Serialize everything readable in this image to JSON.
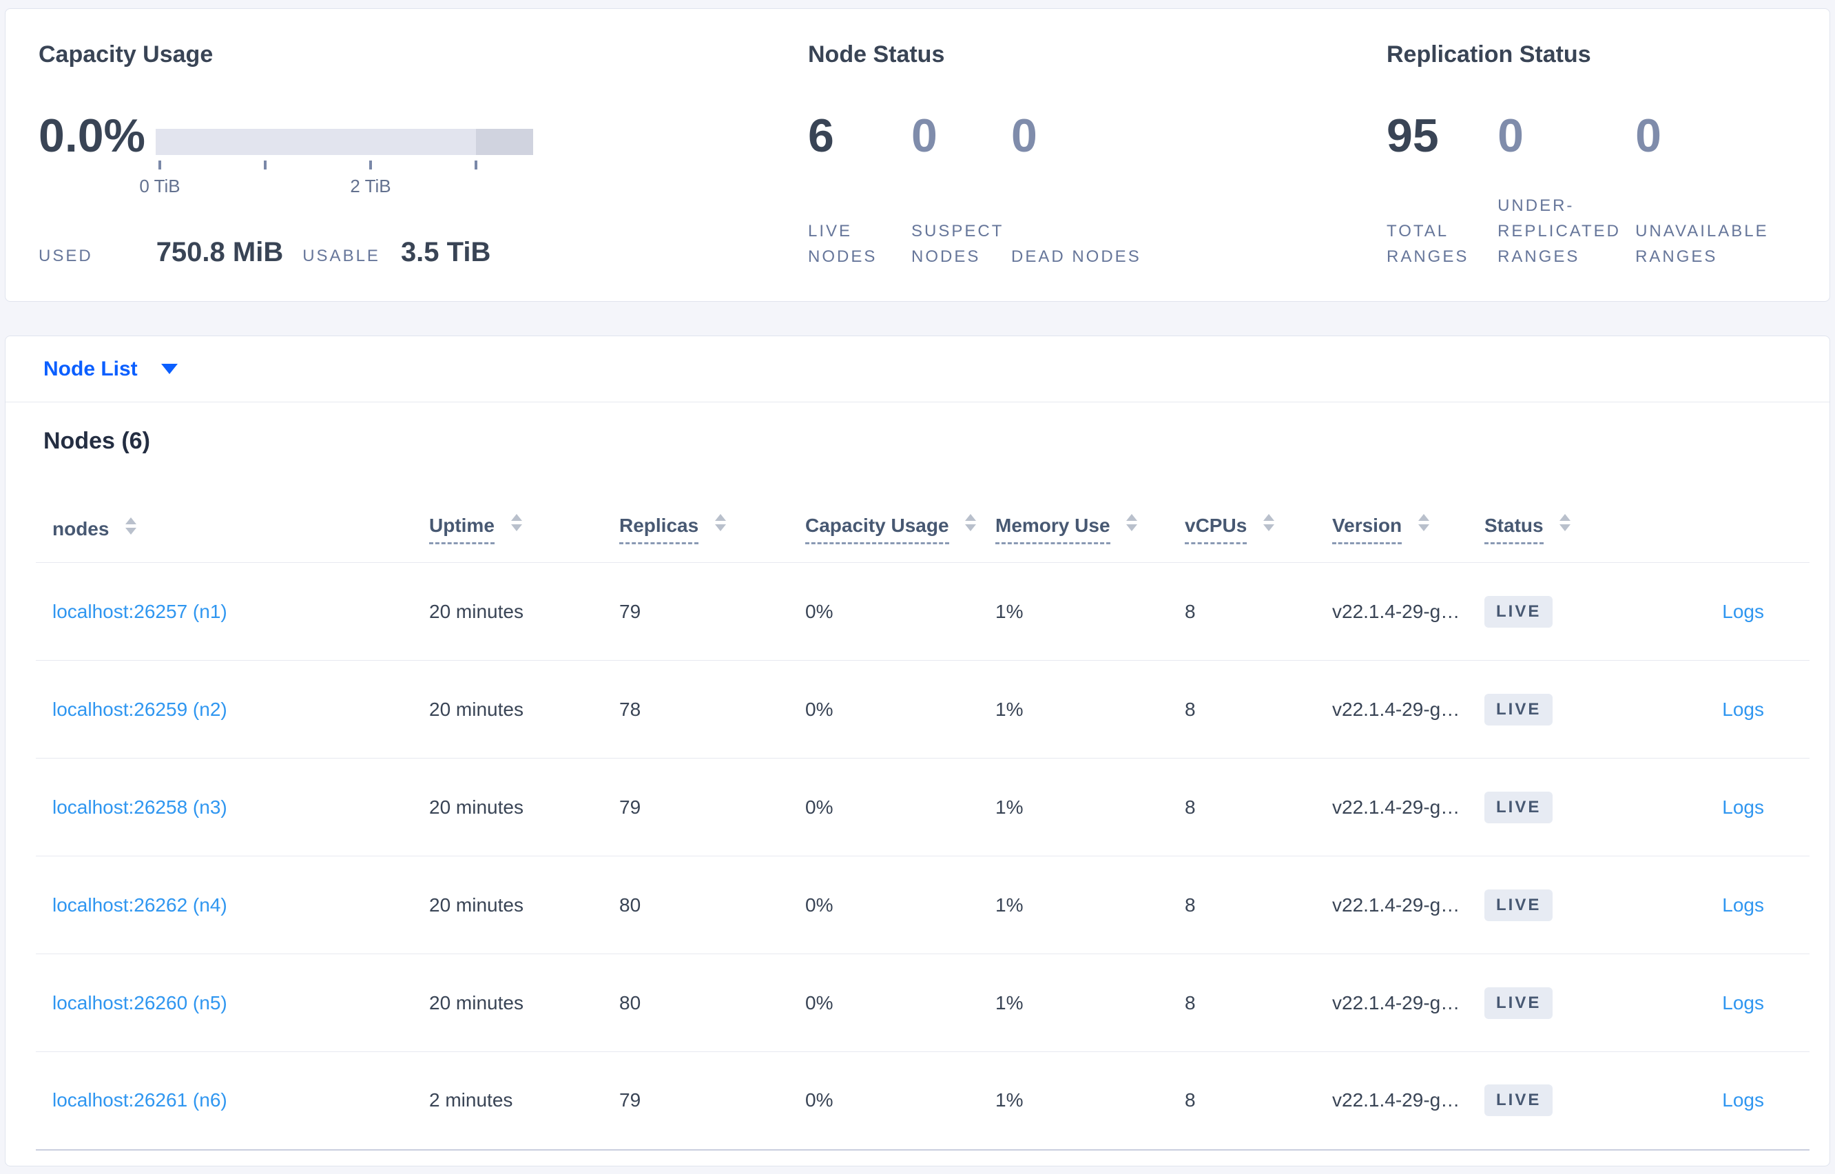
{
  "colors": {
    "page_background": "#f4f5fa",
    "card_background": "#ffffff",
    "card_border": "#e0e4ee",
    "heading_dark": "#394455",
    "muted_stat": "#7f8cab",
    "small_label": "#66769a",
    "primary_blue": "#0b5fff",
    "link_blue": "#2f96f0",
    "gauge_track": "#e2e4ee",
    "gauge_dark_segment": "#d0d3df",
    "badge_background": "#e7ebf3",
    "badge_text": "#475872"
  },
  "capacity": {
    "title": "Capacity Usage",
    "percent": "0.0%",
    "tick_labels": [
      "0 TiB",
      "2 TiB"
    ],
    "used_label": "USED",
    "used_value": "750.8 MiB",
    "usable_label": "USABLE",
    "usable_value": "3.5 TiB"
  },
  "node_status": {
    "title": "Node Status",
    "stats": [
      {
        "value": "6",
        "label": "LIVE NODES"
      },
      {
        "value": "0",
        "label": "SUSPECT NODES"
      },
      {
        "value": "0",
        "label": "DEAD NODES"
      }
    ]
  },
  "replication_status": {
    "title": "Replication Status",
    "stats": [
      {
        "value": "95",
        "label": "TOTAL RANGES"
      },
      {
        "value": "0",
        "label": "UNDER-REPLICATED RANGES"
      },
      {
        "value": "0",
        "label": "UNAVAILABLE RANGES"
      }
    ]
  },
  "node_list": {
    "label": "Node List",
    "caret_icon": "chevron-down-icon"
  },
  "nodes_section": {
    "heading": "Nodes (6)"
  },
  "table": {
    "logs_label": "Logs",
    "columns": [
      {
        "label": "nodes",
        "sortable": true,
        "tooltip_underline": false
      },
      {
        "label": "Uptime",
        "sortable": true,
        "tooltip_underline": true
      },
      {
        "label": "Replicas",
        "sortable": true,
        "tooltip_underline": true
      },
      {
        "label": "Capacity Usage",
        "sortable": true,
        "tooltip_underline": true
      },
      {
        "label": "Memory Use",
        "sortable": true,
        "tooltip_underline": true
      },
      {
        "label": "vCPUs",
        "sortable": true,
        "tooltip_underline": true
      },
      {
        "label": "Version",
        "sortable": true,
        "tooltip_underline": true
      },
      {
        "label": "Status",
        "sortable": true,
        "tooltip_underline": true
      }
    ],
    "rows": [
      {
        "node": "localhost:26257 (n1)",
        "uptime": "20 minutes",
        "replicas": "79",
        "capacity_usage": "0%",
        "memory_use": "1%",
        "vcpus": "8",
        "version": "v22.1.4-29-g…",
        "status": "LIVE"
      },
      {
        "node": "localhost:26259 (n2)",
        "uptime": "20 minutes",
        "replicas": "78",
        "capacity_usage": "0%",
        "memory_use": "1%",
        "vcpus": "8",
        "version": "v22.1.4-29-g…",
        "status": "LIVE"
      },
      {
        "node": "localhost:26258 (n3)",
        "uptime": "20 minutes",
        "replicas": "79",
        "capacity_usage": "0%",
        "memory_use": "1%",
        "vcpus": "8",
        "version": "v22.1.4-29-g…",
        "status": "LIVE"
      },
      {
        "node": "localhost:26262 (n4)",
        "uptime": "20 minutes",
        "replicas": "80",
        "capacity_usage": "0%",
        "memory_use": "1%",
        "vcpus": "8",
        "version": "v22.1.4-29-g…",
        "status": "LIVE"
      },
      {
        "node": "localhost:26260 (n5)",
        "uptime": "20 minutes",
        "replicas": "80",
        "capacity_usage": "0%",
        "memory_use": "1%",
        "vcpus": "8",
        "version": "v22.1.4-29-g…",
        "status": "LIVE"
      },
      {
        "node": "localhost:26261 (n6)",
        "uptime": "2 minutes",
        "replicas": "79",
        "capacity_usage": "0%",
        "memory_use": "1%",
        "vcpus": "8",
        "version": "v22.1.4-29-g…",
        "status": "LIVE"
      }
    ]
  }
}
